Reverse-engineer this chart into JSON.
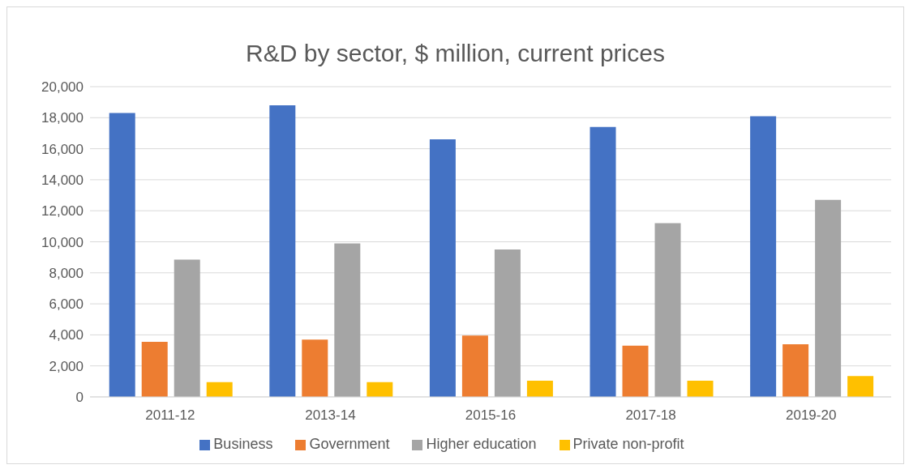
{
  "chart_data": {
    "type": "bar",
    "title": "R&D by sector, $ million, current prices",
    "categories": [
      "2011-12",
      "2013-14",
      "2015-16",
      "2017-18",
      "2019-20"
    ],
    "series": [
      {
        "name": "Business",
        "color": "#4472c4",
        "values": [
          18300,
          18800,
          16600,
          17400,
          18100
        ]
      },
      {
        "name": "Government",
        "color": "#ed7d31",
        "values": [
          3550,
          3700,
          3950,
          3300,
          3400
        ]
      },
      {
        "name": "Higher education",
        "color": "#a5a5a5",
        "values": [
          8850,
          9900,
          9500,
          11200,
          12700
        ]
      },
      {
        "name": "Private non-profit",
        "color": "#ffc000",
        "values": [
          950,
          950,
          1050,
          1050,
          1350
        ]
      }
    ],
    "ylim": [
      0,
      20000
    ],
    "yticks": [
      0,
      {
        "value": 2000,
        "label": "2,000"
      },
      {
        "value": 4000,
        "label": "4,000"
      },
      {
        "value": 6000,
        "label": "6,000"
      },
      {
        "value": 8000,
        "label": "8,000"
      },
      {
        "value": 10000,
        "label": "10,000"
      },
      {
        "value": 12000,
        "label": "12,000"
      },
      {
        "value": 14000,
        "label": "14,000"
      },
      {
        "value": 16000,
        "label": "16,000"
      },
      {
        "value": 18000,
        "label": "18,000"
      },
      {
        "value": 20000,
        "label": "20,000"
      }
    ],
    "grid": "y",
    "legend": "bottom"
  }
}
